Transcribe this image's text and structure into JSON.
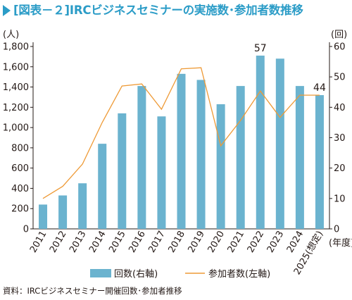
{
  "title": "[図表－２]IRCビジネスセミナーの実施数･参加者数推移",
  "source": "資料：IRCビジネスセミナー開催回数･参加者推移",
  "colors": {
    "bar": "#6bb3cf",
    "line": "#ee9a36",
    "title": "#2b9cc7",
    "axis": "#231815"
  },
  "chart_data": {
    "type": "bar",
    "categories": [
      "2011",
      "2012",
      "2013",
      "2014",
      "2015",
      "2016",
      "2017",
      "2018",
      "2019",
      "2020",
      "2021",
      "2022",
      "2023",
      "2024",
      "2025(想定)"
    ],
    "x_unit": "(年度)",
    "left_axis": {
      "unit": "(人)",
      "min": 0,
      "max": 1800,
      "ticks": [
        0,
        200,
        400,
        600,
        800,
        "1,000",
        "1,200",
        "1,400",
        "1,600",
        "1,800"
      ],
      "tick_values": [
        0,
        200,
        400,
        600,
        800,
        1000,
        1200,
        1400,
        1600,
        1800
      ]
    },
    "right_axis": {
      "unit": "(回)",
      "min": 0,
      "max": 60,
      "ticks": [
        0,
        10,
        20,
        30,
        40,
        50,
        60
      ]
    },
    "series": [
      {
        "name": "回数(右軸)",
        "type": "bar",
        "axis": "right",
        "values": [
          8,
          11,
          15,
          28,
          38,
          47,
          37,
          51,
          49,
          41,
          47,
          57,
          56,
          47,
          44
        ]
      },
      {
        "name": "参加者数(左軸)",
        "type": "line",
        "axis": "left",
        "values": [
          300,
          420,
          640,
          1050,
          1410,
          1430,
          1180,
          1580,
          1590,
          820,
          1070,
          1360,
          1100,
          1320,
          1320
        ]
      }
    ],
    "data_labels": [
      {
        "index": 11,
        "text": "57"
      },
      {
        "index": 14,
        "text": "44"
      }
    ],
    "legend": {
      "position": "bottom"
    }
  }
}
